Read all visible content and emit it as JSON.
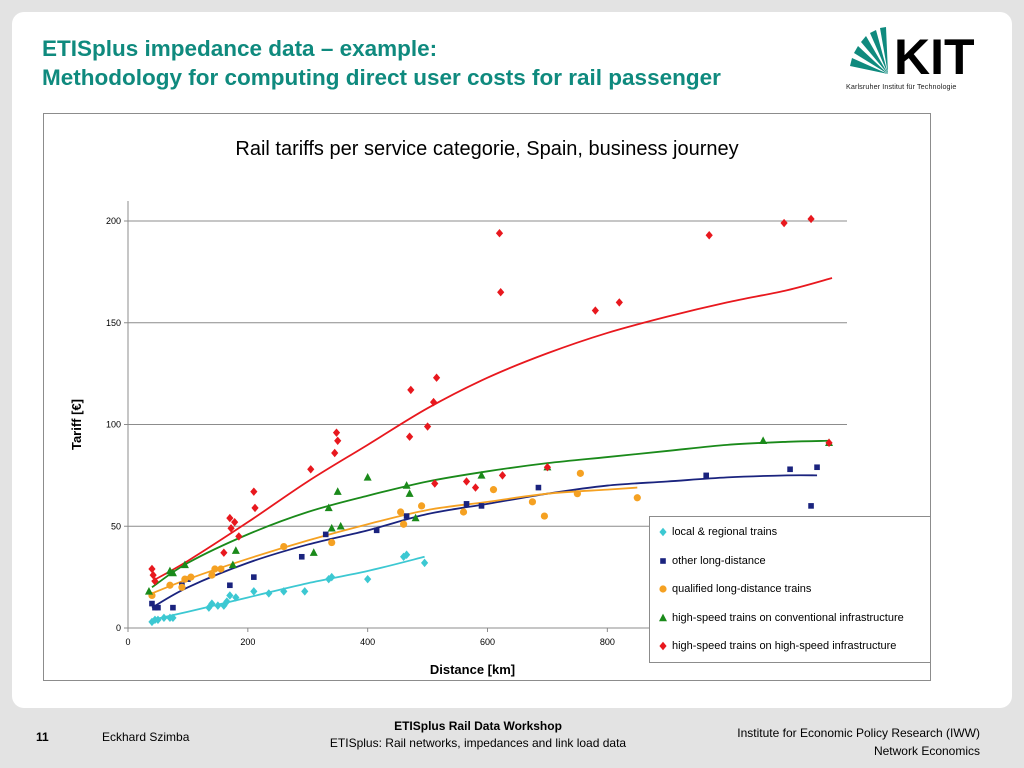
{
  "slide": {
    "title_line1": "ETISplus impedance data – example:",
    "title_line2": "Methodology for computing direct user costs for rail passenger",
    "logo_text": "KIT",
    "logo_subtitle": "Karlsruher Institut für Technologie",
    "page_number": "11",
    "author": "Eckhard Szimba",
    "footer_title": "ETISplus Rail Data Workshop",
    "footer_subtitle": "ETISplus: Rail networks, impedances and link load data",
    "institute_line1": "Institute for Economic Policy Research (IWW)",
    "institute_line2": "Network Economics",
    "accent_color": "#0f8a7e"
  },
  "chart_data": {
    "type": "scatter",
    "title": "Rail tariffs per service categorie, Spain, business journey",
    "xlabel": "Distance [km]",
    "ylabel": "Tariff [€]",
    "xlim": [
      0,
      1200
    ],
    "ylim": [
      0,
      200
    ],
    "xticks": [
      0,
      200,
      400,
      600,
      800,
      1000
    ],
    "yticks": [
      0,
      50,
      100,
      150,
      200
    ],
    "grid": "horizontal",
    "legend_position": "bottom-right",
    "series": [
      {
        "name": "local & regional trains",
        "color": "#3cc8d2",
        "marker": "diamond",
        "points": [
          [
            40,
            3
          ],
          [
            45,
            4
          ],
          [
            50,
            4
          ],
          [
            60,
            5
          ],
          [
            70,
            5
          ],
          [
            75,
            5
          ],
          [
            135,
            10
          ],
          [
            140,
            12
          ],
          [
            150,
            11
          ],
          [
            160,
            11
          ],
          [
            165,
            13
          ],
          [
            170,
            16
          ],
          [
            180,
            15
          ],
          [
            210,
            18
          ],
          [
            235,
            17
          ],
          [
            260,
            18
          ],
          [
            295,
            18
          ],
          [
            335,
            24
          ],
          [
            340,
            25
          ],
          [
            400,
            24
          ],
          [
            460,
            35
          ],
          [
            465,
            36
          ],
          [
            495,
            32
          ]
        ],
        "trend": [
          [
            40,
            4
          ],
          [
            100,
            8
          ],
          [
            200,
            15
          ],
          [
            300,
            22
          ],
          [
            400,
            28
          ],
          [
            495,
            35
          ]
        ]
      },
      {
        "name": "other long-distance",
        "color": "#1a237e",
        "marker": "square",
        "points": [
          [
            40,
            12
          ],
          [
            45,
            10
          ],
          [
            50,
            10
          ],
          [
            75,
            10
          ],
          [
            90,
            21
          ],
          [
            100,
            24
          ],
          [
            170,
            21
          ],
          [
            210,
            25
          ],
          [
            290,
            35
          ],
          [
            330,
            46
          ],
          [
            415,
            48
          ],
          [
            465,
            55
          ],
          [
            565,
            61
          ],
          [
            590,
            60
          ],
          [
            685,
            69
          ],
          [
            965,
            75
          ],
          [
            1105,
            78
          ],
          [
            1140,
            60
          ],
          [
            1150,
            79
          ]
        ],
        "trend": [
          [
            40,
            10
          ],
          [
            100,
            20
          ],
          [
            200,
            32
          ],
          [
            300,
            41
          ],
          [
            400,
            48
          ],
          [
            500,
            56
          ],
          [
            600,
            61
          ],
          [
            700,
            66
          ],
          [
            800,
            70
          ],
          [
            900,
            72
          ],
          [
            1000,
            74
          ],
          [
            1100,
            75
          ],
          [
            1150,
            75
          ]
        ]
      },
      {
        "name": "qualified long-distance trains",
        "color": "#f5a122",
        "marker": "circle",
        "points": [
          [
            40,
            16
          ],
          [
            70,
            21
          ],
          [
            90,
            20
          ],
          [
            95,
            24
          ],
          [
            105,
            25
          ],
          [
            140,
            26
          ],
          [
            145,
            29
          ],
          [
            155,
            29
          ],
          [
            260,
            40
          ],
          [
            340,
            42
          ],
          [
            455,
            57
          ],
          [
            460,
            51
          ],
          [
            490,
            60
          ],
          [
            560,
            57
          ],
          [
            610,
            68
          ],
          [
            675,
            62
          ],
          [
            695,
            55
          ],
          [
            750,
            66
          ],
          [
            755,
            76
          ],
          [
            850,
            64
          ]
        ],
        "trend": [
          [
            40,
            17
          ],
          [
            100,
            24
          ],
          [
            200,
            34
          ],
          [
            300,
            43
          ],
          [
            400,
            51
          ],
          [
            500,
            58
          ],
          [
            600,
            62
          ],
          [
            700,
            66
          ],
          [
            800,
            68
          ],
          [
            850,
            69
          ]
        ]
      },
      {
        "name": "high-speed trains on conventional infrastructure",
        "color": "#1a8a1a",
        "marker": "triangle",
        "points": [
          [
            35,
            18
          ],
          [
            70,
            28
          ],
          [
            75,
            27
          ],
          [
            95,
            31
          ],
          [
            175,
            31
          ],
          [
            180,
            38
          ],
          [
            310,
            37
          ],
          [
            335,
            59
          ],
          [
            340,
            49
          ],
          [
            350,
            67
          ],
          [
            355,
            50
          ],
          [
            400,
            74
          ],
          [
            465,
            70
          ],
          [
            470,
            66
          ],
          [
            480,
            54
          ],
          [
            590,
            75
          ],
          [
            700,
            79
          ],
          [
            1060,
            92
          ],
          [
            1170,
            91
          ]
        ],
        "trend": [
          [
            40,
            20
          ],
          [
            100,
            32
          ],
          [
            200,
            46
          ],
          [
            300,
            57
          ],
          [
            400,
            65
          ],
          [
            500,
            72
          ],
          [
            600,
            77
          ],
          [
            700,
            81
          ],
          [
            800,
            84
          ],
          [
            900,
            87
          ],
          [
            1000,
            90
          ],
          [
            1100,
            91.5
          ],
          [
            1170,
            92
          ]
        ]
      },
      {
        "name": "high-speed trains on high-speed infrastructure",
        "color": "#e8181e",
        "marker": "diamond",
        "points": [
          [
            40,
            29
          ],
          [
            42,
            26
          ],
          [
            45,
            23
          ],
          [
            160,
            37
          ],
          [
            170,
            54
          ],
          [
            172,
            49
          ],
          [
            178,
            52
          ],
          [
            185,
            45
          ],
          [
            210,
            67
          ],
          [
            212,
            59
          ],
          [
            305,
            78
          ],
          [
            345,
            86
          ],
          [
            348,
            96
          ],
          [
            350,
            92
          ],
          [
            470,
            94
          ],
          [
            472,
            117
          ],
          [
            500,
            99
          ],
          [
            510,
            111
          ],
          [
            512,
            71
          ],
          [
            515,
            123
          ],
          [
            565,
            72
          ],
          [
            580,
            69
          ],
          [
            620,
            194
          ],
          [
            622,
            165
          ],
          [
            625,
            75
          ],
          [
            700,
            79
          ],
          [
            780,
            156
          ],
          [
            820,
            160
          ],
          [
            970,
            193
          ],
          [
            1095,
            199
          ],
          [
            1140,
            201
          ],
          [
            1170,
            91
          ]
        ],
        "trend": [
          [
            40,
            23
          ],
          [
            100,
            33
          ],
          [
            200,
            52
          ],
          [
            300,
            72
          ],
          [
            400,
            90
          ],
          [
            500,
            108
          ],
          [
            600,
            123
          ],
          [
            700,
            135
          ],
          [
            800,
            145
          ],
          [
            900,
            153
          ],
          [
            1000,
            160
          ],
          [
            1100,
            166
          ],
          [
            1175,
            172
          ]
        ]
      }
    ]
  }
}
